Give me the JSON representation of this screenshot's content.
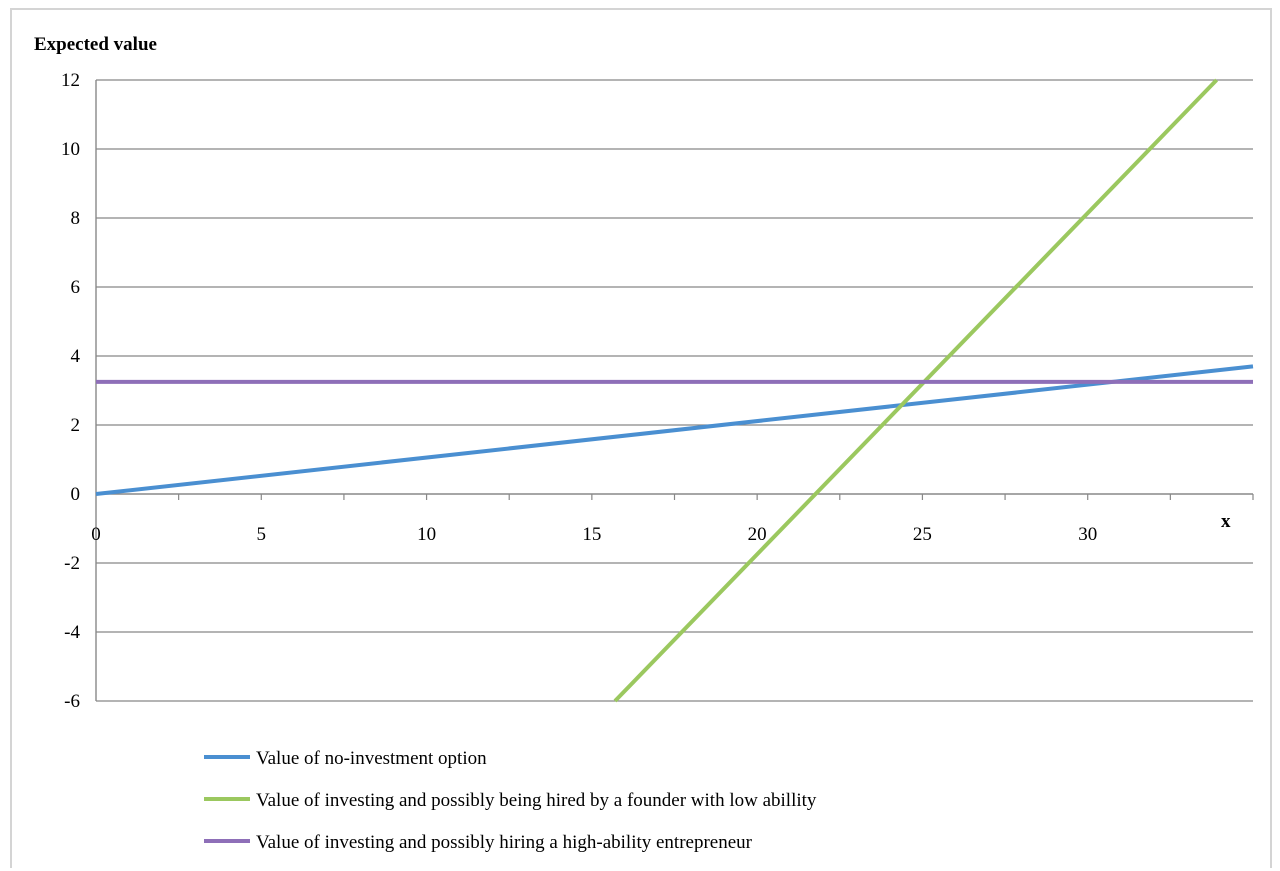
{
  "chart_data": {
    "type": "line",
    "title": "",
    "ylabel": "Expected value",
    "xlabel": "x",
    "xlim": [
      0,
      35
    ],
    "ylim": [
      -6,
      12
    ],
    "x_ticks": [
      0,
      5,
      10,
      15,
      20,
      25,
      30
    ],
    "y_ticks": [
      -6,
      -4,
      -2,
      0,
      2,
      4,
      6,
      8,
      10,
      12
    ],
    "grid": "horizontal",
    "legend_position": "bottom",
    "series": [
      {
        "name": "Value of no-investment option",
        "color": "#4a8fd1",
        "points": [
          [
            0,
            0
          ],
          [
            35,
            3.7
          ]
        ]
      },
      {
        "name": "Value of investing and possibly being hired by a founder with low abillity",
        "color": "#9bc85f",
        "points": [
          [
            15.7,
            -6
          ],
          [
            33.9,
            12
          ]
        ]
      },
      {
        "name": "Value of investing and possibly hiring a high-ability entrepreneur",
        "color": "#8e6fb8",
        "points": [
          [
            0,
            3.25
          ],
          [
            35,
            3.25
          ]
        ]
      }
    ]
  }
}
